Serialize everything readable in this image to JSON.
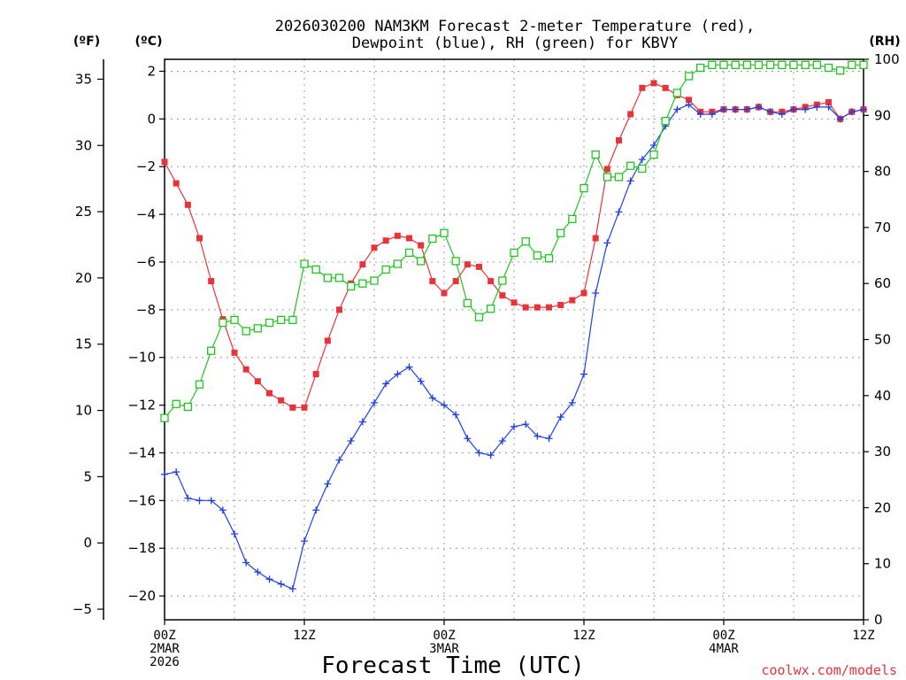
{
  "chart_data": {
    "type": "line",
    "title_line1": "2026030200 NAM3KM Forecast 2-meter Temperature (red),",
    "title_line2": "Dewpoint (blue), RH (green) for KBVY",
    "unit_left_outer": "(ºF)",
    "unit_left_inner": "(ºC)",
    "unit_right": "(RH)",
    "xlabel": "Forecast Time (UTC)",
    "credit": "coolwx.com/models",
    "x_range_hours": [
      0,
      60
    ],
    "x_ticks": [
      {
        "hour": 0,
        "lines": [
          "00Z",
          "2MAR",
          "2026"
        ]
      },
      {
        "hour": 12,
        "lines": [
          "12Z"
        ]
      },
      {
        "hour": 24,
        "lines": [
          "00Z",
          "3MAR"
        ]
      },
      {
        "hour": 36,
        "lines": [
          "12Z"
        ]
      },
      {
        "hour": 48,
        "lines": [
          "00Z",
          "4MAR"
        ]
      },
      {
        "hour": 60,
        "lines": [
          "12Z"
        ]
      }
    ],
    "celsius_axis": {
      "range": [
        -21,
        2.5
      ],
      "ticks": [
        2,
        0,
        -2,
        -4,
        -6,
        -8,
        -10,
        -12,
        -14,
        -16,
        -18,
        -20
      ],
      "tick_labels": [
        "2",
        "0",
        "−2",
        "−4",
        "−6",
        "−8",
        "−10",
        "−12",
        "−14",
        "−16",
        "−18",
        "−20"
      ]
    },
    "fahrenheit_axis": {
      "ticks": [
        35,
        30,
        25,
        20,
        15,
        10,
        5,
        0,
        -5
      ],
      "tick_labels": [
        "35",
        "30",
        "25",
        "20",
        "15",
        "10",
        "5",
        "0",
        "−5"
      ]
    },
    "rh_axis": {
      "range": [
        0,
        100
      ],
      "ticks": [
        100,
        90,
        80,
        70,
        60,
        50,
        40,
        30,
        20,
        10,
        0
      ],
      "tick_labels": [
        "100",
        "90",
        "80",
        "70",
        "60",
        "50",
        "40",
        "30",
        "20",
        "10",
        "0"
      ]
    },
    "series": [
      {
        "name": "2-meter Temperature",
        "axis": "celsius",
        "color": "#e8333b",
        "marker": "filled-square",
        "hours": [
          0,
          1,
          2,
          3,
          4,
          5,
          6,
          7,
          8,
          9,
          10,
          11,
          12,
          13,
          14,
          15,
          16,
          17,
          18,
          19,
          20,
          21,
          22,
          23,
          24,
          25,
          26,
          27,
          28,
          29,
          30,
          31,
          32,
          33,
          34,
          35,
          36,
          37,
          38,
          39,
          40,
          41,
          42,
          43,
          44,
          45,
          46,
          47,
          48,
          49,
          50,
          51,
          52,
          53,
          54,
          55,
          56,
          57,
          58,
          59,
          60
        ],
        "values": [
          -1.8,
          -2.7,
          -3.6,
          -5.0,
          -6.8,
          -8.4,
          -9.8,
          -10.5,
          -11.0,
          -11.5,
          -11.8,
          -12.1,
          -12.1,
          -10.7,
          -9.3,
          -8.0,
          -6.9,
          -6.1,
          -5.4,
          -5.1,
          -4.9,
          -5.0,
          -5.3,
          -6.8,
          -7.3,
          -6.8,
          -6.1,
          -6.2,
          -6.8,
          -7.4,
          -7.7,
          -7.9,
          -7.9,
          -7.9,
          -7.8,
          -7.6,
          -7.3,
          -5.0,
          -2.1,
          -0.9,
          0.2,
          1.3,
          1.5,
          1.3,
          1.0,
          0.8,
          0.3,
          0.3,
          0.4,
          0.4,
          0.4,
          0.5,
          0.3,
          0.3,
          0.4,
          0.5,
          0.6,
          0.7,
          0.0,
          0.3,
          0.4
        ]
      },
      {
        "name": "Dewpoint",
        "axis": "celsius",
        "color": "#2040e0",
        "marker": "plus",
        "hours": [
          0,
          1,
          2,
          3,
          4,
          5,
          6,
          7,
          8,
          9,
          10,
          11,
          12,
          13,
          14,
          15,
          16,
          17,
          18,
          19,
          20,
          21,
          22,
          23,
          24,
          25,
          26,
          27,
          28,
          29,
          30,
          31,
          32,
          33,
          34,
          35,
          36,
          37,
          38,
          39,
          40,
          41,
          42,
          43,
          44,
          45,
          46,
          47,
          48,
          49,
          50,
          51,
          52,
          53,
          54,
          55,
          56,
          57,
          58,
          59,
          60
        ],
        "values": [
          -14.9,
          -14.8,
          -15.9,
          -16.0,
          -16.0,
          -16.4,
          -17.4,
          -18.6,
          -19.0,
          -19.3,
          -19.5,
          -19.7,
          -17.7,
          -16.4,
          -15.3,
          -14.3,
          -13.5,
          -12.7,
          -11.9,
          -11.1,
          -10.7,
          -10.4,
          -11.0,
          -11.7,
          -12.0,
          -12.4,
          -13.4,
          -14.0,
          -14.1,
          -13.5,
          -12.9,
          -12.8,
          -13.3,
          -13.4,
          -12.5,
          -11.9,
          -10.7,
          -7.3,
          -5.2,
          -3.9,
          -2.6,
          -1.7,
          -1.1,
          -0.3,
          0.4,
          0.6,
          0.2,
          0.2,
          0.4,
          0.4,
          0.4,
          0.5,
          0.3,
          0.2,
          0.4,
          0.4,
          0.5,
          0.5,
          0.0,
          0.3,
          0.4
        ]
      },
      {
        "name": "RH",
        "axis": "rh",
        "color": "#22c422",
        "marker": "open-square",
        "hours": [
          0,
          1,
          2,
          3,
          4,
          5,
          6,
          7,
          8,
          9,
          10,
          11,
          12,
          13,
          14,
          15,
          16,
          17,
          18,
          19,
          20,
          21,
          22,
          23,
          24,
          25,
          26,
          27,
          28,
          29,
          30,
          31,
          32,
          33,
          34,
          35,
          36,
          37,
          38,
          39,
          40,
          41,
          42,
          43,
          44,
          45,
          46,
          47,
          48,
          49,
          50,
          51,
          52,
          53,
          54,
          55,
          56,
          57,
          58,
          59,
          60
        ],
        "values": [
          36,
          38.5,
          38,
          42,
          48,
          53,
          53.5,
          51.5,
          52,
          53,
          53.5,
          53.5,
          63.5,
          62.5,
          61,
          61,
          59.5,
          60,
          60.5,
          62.5,
          63.5,
          65.5,
          64,
          68,
          69,
          64,
          56.5,
          54,
          55.5,
          60.5,
          65.5,
          67.5,
          65,
          64.5,
          69,
          71.5,
          77,
          83,
          79,
          79,
          81,
          80.5,
          83,
          89,
          94,
          97,
          98.5,
          99,
          99,
          99,
          99,
          99,
          99,
          99,
          99,
          99,
          99,
          98.5,
          98,
          99,
          99
        ]
      }
    ]
  }
}
